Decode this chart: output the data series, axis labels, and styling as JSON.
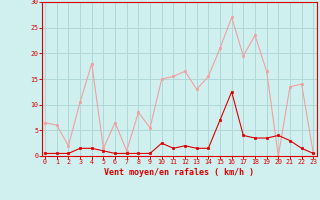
{
  "x": [
    0,
    1,
    2,
    3,
    4,
    5,
    6,
    7,
    8,
    9,
    10,
    11,
    12,
    13,
    14,
    15,
    16,
    17,
    18,
    19,
    20,
    21,
    22,
    23
  ],
  "rafales": [
    6.5,
    6.0,
    2.0,
    10.5,
    18.0,
    1.5,
    6.5,
    1.0,
    8.5,
    5.5,
    15.0,
    15.5,
    16.5,
    13.0,
    15.5,
    21.0,
    27.0,
    19.5,
    23.5,
    16.5,
    0.0,
    13.5,
    14.0,
    0.5
  ],
  "moyen": [
    0.5,
    0.5,
    0.5,
    1.5,
    1.5,
    1.0,
    0.5,
    0.5,
    0.5,
    0.5,
    2.5,
    1.5,
    2.0,
    1.5,
    1.5,
    7.0,
    12.5,
    4.0,
    3.5,
    3.5,
    4.0,
    3.0,
    1.5,
    0.5
  ],
  "color_rafales": "#f0a0a0",
  "color_moyen": "#dd0000",
  "bg_color": "#d0f0f0",
  "grid_color": "#b0d8d8",
  "xlabel": "Vent moyen/en rafales ( km/h )",
  "ylim": [
    0,
    30
  ],
  "yticks": [
    0,
    5,
    10,
    15,
    20,
    25,
    30
  ],
  "xticks": [
    0,
    1,
    2,
    3,
    4,
    5,
    6,
    7,
    8,
    9,
    10,
    11,
    12,
    13,
    14,
    15,
    16,
    17,
    18,
    19,
    20,
    21,
    22,
    23
  ]
}
